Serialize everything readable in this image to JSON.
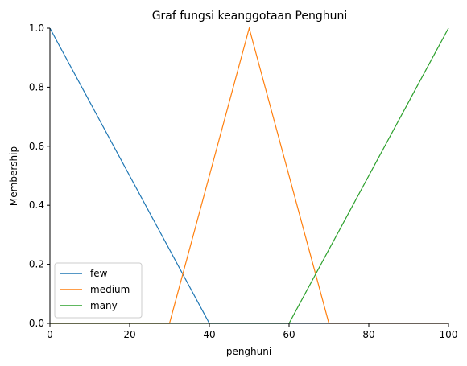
{
  "chart_data": {
    "type": "line",
    "title": "Graf fungsi keanggotaan Penghuni",
    "xlabel": "penghuni",
    "ylabel": "Membership",
    "xlim": [
      0,
      100
    ],
    "ylim": [
      0,
      1.0
    ],
    "xticks": [
      0,
      20,
      40,
      60,
      80,
      100
    ],
    "yticks": [
      0.0,
      0.2,
      0.4,
      0.6,
      0.8,
      1.0
    ],
    "ytick_labels": [
      "0.0",
      "0.2",
      "0.4",
      "0.6",
      "0.8",
      "1.0"
    ],
    "grid": false,
    "legend_position": "lower-left",
    "series": [
      {
        "name": "few",
        "color": "#1f77b4",
        "x": [
          0,
          40,
          100
        ],
        "y": [
          1.0,
          0.0,
          0.0
        ]
      },
      {
        "name": "medium",
        "color": "#ff7f0e",
        "x": [
          0,
          30,
          50,
          70,
          100
        ],
        "y": [
          0.0,
          0.0,
          1.0,
          0.0,
          0.0
        ]
      },
      {
        "name": "many",
        "color": "#2ca02c",
        "x": [
          0,
          60,
          100
        ],
        "y": [
          0.0,
          0.0,
          1.0
        ]
      }
    ]
  }
}
